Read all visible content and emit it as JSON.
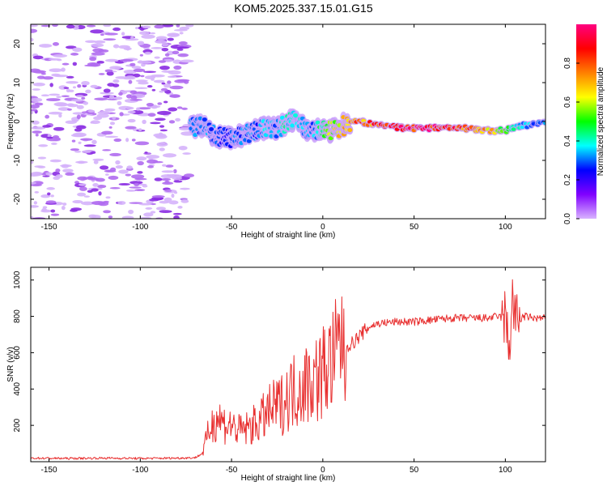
{
  "chart_data": [
    {
      "type": "heatmap",
      "title": "KOM5.2025.337.15.01.G15",
      "xlabel": "Height of straight line (km)",
      "ylabel": "Frequency (Hz)",
      "xlim": [
        -160,
        122
      ],
      "ylim": [
        -25,
        25
      ],
      "xticks": [
        -150,
        -100,
        -50,
        0,
        50,
        100
      ],
      "yticks": [
        -20,
        -10,
        0,
        10,
        20
      ],
      "colorbar": {
        "label": "Normalized spectral amplitude",
        "range": [
          0,
          1
        ],
        "ticks": [
          "0.0",
          "0.2",
          "0.4",
          "0.6",
          "0.8"
        ],
        "colormap": [
          "#ffffff",
          "#d9b3ff",
          "#8000ff",
          "#0000ff",
          "#00ffff",
          "#00ff00",
          "#ffff00",
          "#ff8000",
          "#ff0000",
          "#ff0080"
        ]
      },
      "ridge": {
        "x": [
          -72,
          -65,
          -60,
          -55,
          -50,
          -45,
          -40,
          -35,
          -30,
          -25,
          -20,
          -15,
          -10,
          -5,
          0,
          5,
          10,
          15,
          20,
          30,
          40,
          50,
          60,
          70,
          80,
          90,
          95,
          100,
          105,
          110,
          115,
          122
        ],
        "freq": [
          -1.5,
          -1.2,
          -3.5,
          -4,
          -4.2,
          -3.8,
          -3,
          -2,
          -1.5,
          -1.8,
          -0.5,
          0.5,
          -1.5,
          -2.5,
          -2,
          -2.2,
          -1.5,
          0,
          0,
          -1,
          -1.5,
          -1.8,
          -1.6,
          -1.5,
          -1.8,
          -2.3,
          -2.5,
          -2.2,
          -1.5,
          -1,
          -0.8,
          -0.5
        ],
        "amp": [
          0.3,
          0.32,
          0.3,
          0.25,
          0.28,
          0.3,
          0.32,
          0.28,
          0.35,
          0.3,
          0.4,
          0.35,
          0.35,
          0.3,
          0.45,
          0.55,
          0.65,
          0.7,
          0.75,
          0.8,
          0.85,
          0.88,
          0.9,
          0.85,
          0.78,
          0.7,
          0.6,
          0.5,
          0.4,
          0.35,
          0.32,
          0.3
        ]
      },
      "noise_region_x": [
        -160,
        -73
      ]
    },
    {
      "type": "line",
      "xlabel": "Height of straight line (km)",
      "ylabel": "SNR (v/v)",
      "xlim": [
        -160,
        122
      ],
      "ylim": [
        0,
        1070
      ],
      "xticks": [
        -150,
        -100,
        -50,
        0,
        50,
        100
      ],
      "yticks": [
        200,
        400,
        600,
        800,
        1000
      ],
      "series": [
        {
          "name": "SNR",
          "color": "#e83030",
          "x": [
            -160,
            -140,
            -120,
            -100,
            -80,
            -70,
            -66,
            -62,
            -58,
            -54,
            -50,
            -46,
            -42,
            -38,
            -34,
            -30,
            -26,
            -22,
            -18,
            -14,
            -10,
            -6,
            -2,
            2,
            6,
            10,
            11,
            12,
            13,
            16,
            20,
            25,
            30,
            40,
            50,
            60,
            70,
            80,
            90,
            96,
            100,
            102,
            104,
            106,
            110,
            116,
            122
          ],
          "values": [
            20,
            18,
            20,
            18,
            20,
            22,
            45,
            180,
            250,
            210,
            200,
            170,
            180,
            200,
            230,
            270,
            300,
            320,
            380,
            400,
            430,
            450,
            470,
            520,
            560,
            650,
            820,
            280,
            640,
            650,
            690,
            740,
            760,
            770,
            770,
            780,
            790,
            790,
            790,
            800,
            790,
            620,
            900,
            760,
            800,
            790,
            790
          ]
        }
      ]
    }
  ]
}
